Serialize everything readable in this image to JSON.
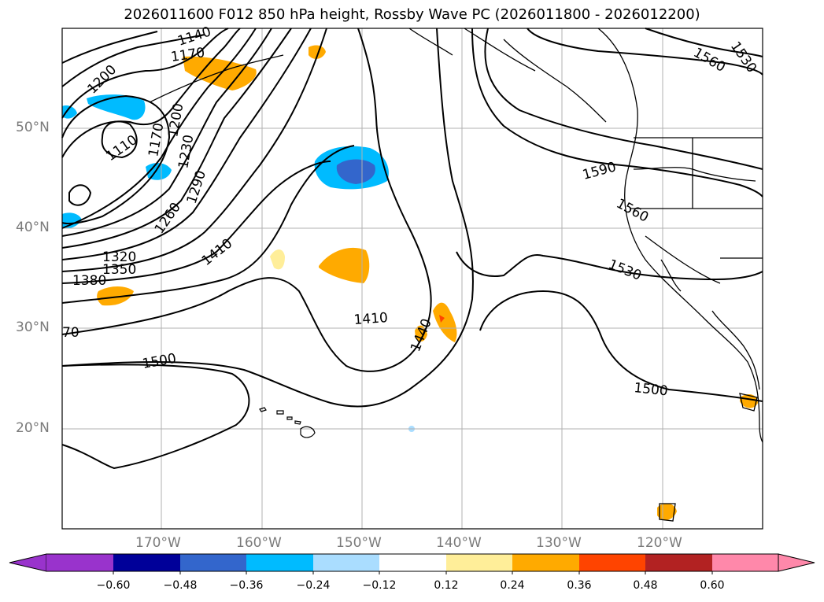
{
  "title": "2026011600 F012 850 hPa height, Rossby Wave PC (2026011800 - 2026012200)",
  "lat_labels": [
    "50°N",
    "40°N",
    "30°N",
    "20°N"
  ],
  "lon_labels": [
    "170°W",
    "160°W",
    "150°W",
    "140°W",
    "130°W",
    "120°W"
  ],
  "contour_labels": [
    "1140",
    "1170",
    "1200",
    "1110",
    "1170",
    "1200",
    "1230",
    "1290",
    "1260",
    "1320",
    "1350",
    "1380",
    "70",
    "1410",
    "1410",
    "1440",
    "1500",
    "1560",
    "1530",
    "1590",
    "1560",
    "1530",
    "1500"
  ],
  "colorbar": {
    "ticks": [
      "−0.60",
      "−0.48",
      "−0.36",
      "−0.24",
      "−0.12",
      "0.12",
      "0.24",
      "0.36",
      "0.48",
      "0.60"
    ],
    "colors": [
      "#9933cc",
      "#000099",
      "#3366cc",
      "#00bbff",
      "#aaddff",
      "#ffffff",
      "#ffee99",
      "#ffaa00",
      "#ff4400",
      "#b22222",
      "#ff88aa"
    ]
  }
}
